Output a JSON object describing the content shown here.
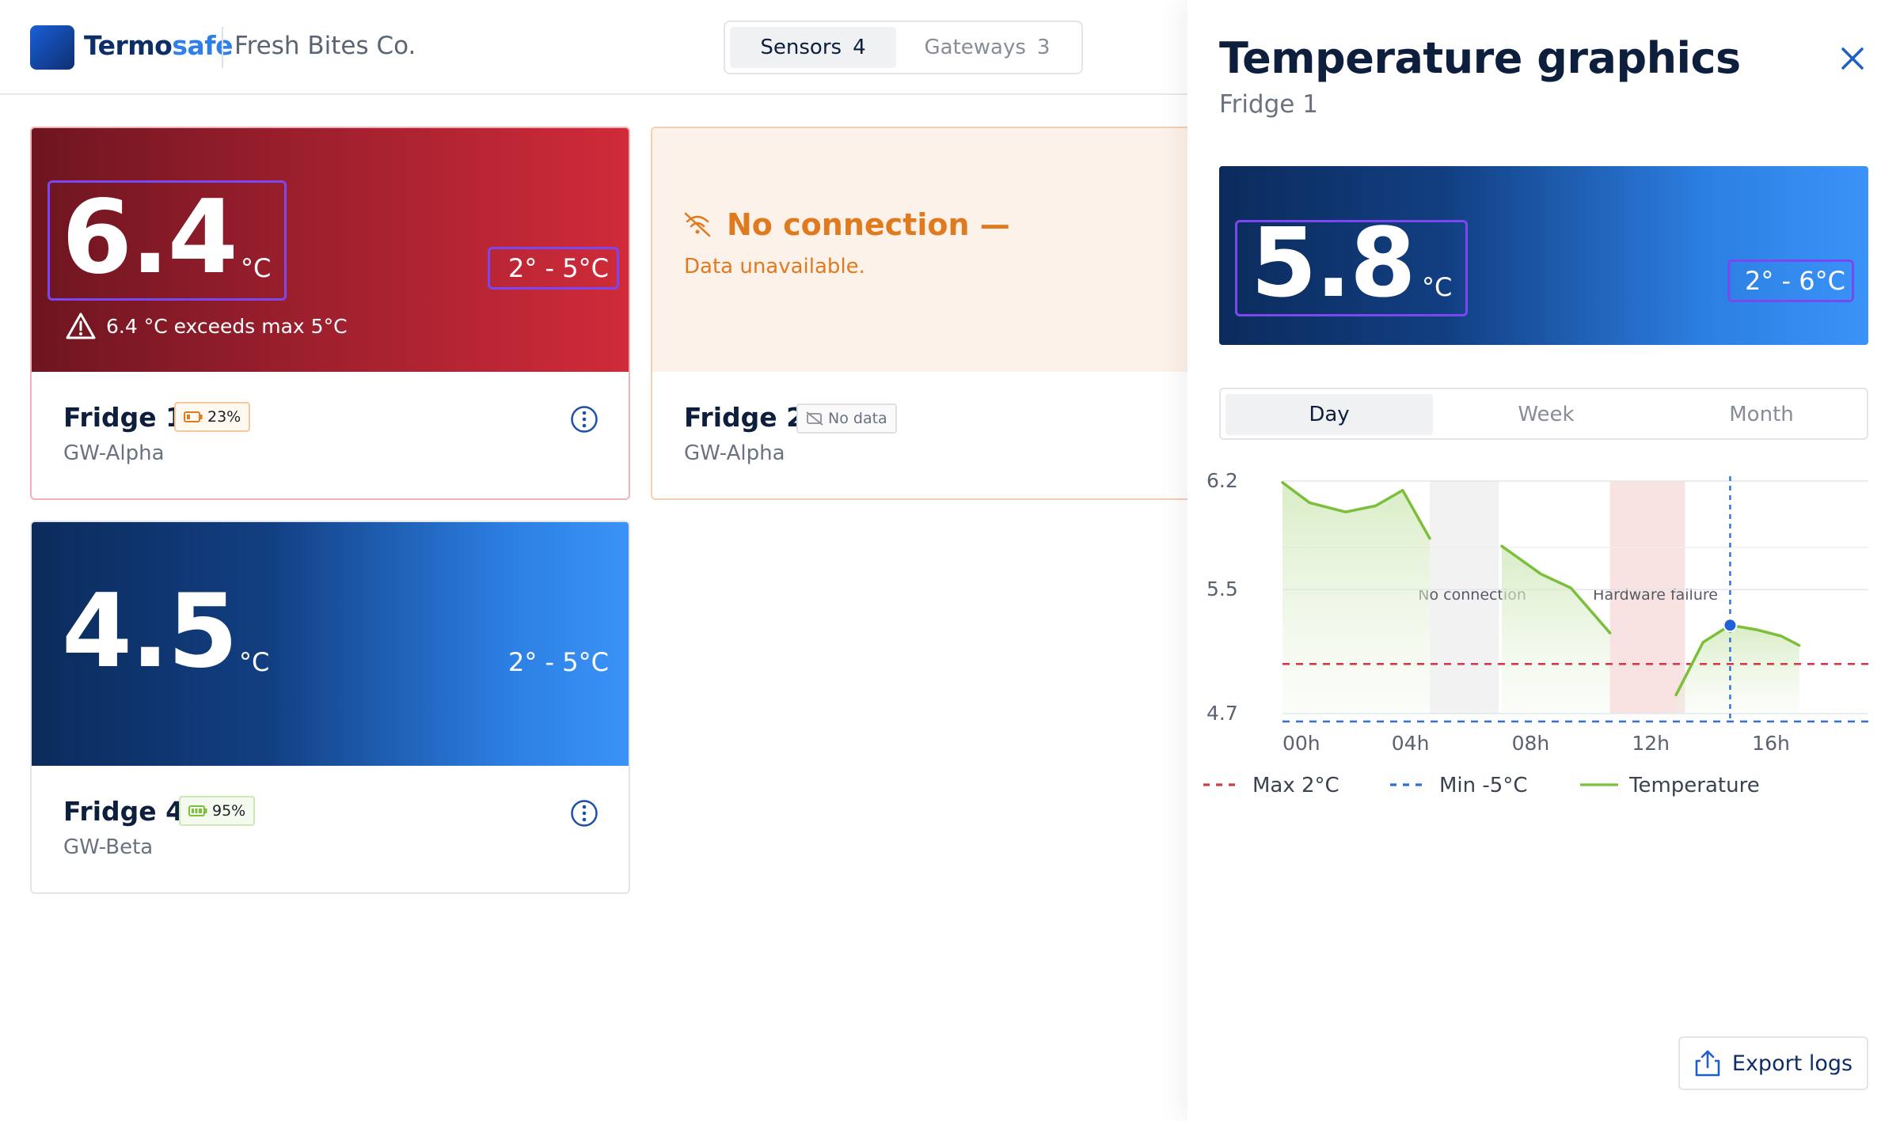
{
  "header": {
    "brand_part1": "Termo",
    "brand_part2": "safe",
    "company": "Fresh Bites Co.",
    "tabs": [
      {
        "label": "Sensors",
        "count": "4"
      },
      {
        "label": "Gateways",
        "count": "3"
      }
    ]
  },
  "cards": {
    "fridge1": {
      "value": "6.4",
      "unit": "°C",
      "range": "2° - 5°C",
      "alert": "6.4 °C exceeds max 5°C",
      "name": "Fridge 1",
      "battery": "23%",
      "gateway": "GW-Alpha"
    },
    "fridge2": {
      "status": "No connection",
      "status_dash": "—",
      "detail": "Data unavailable.",
      "name": "Fridge 2",
      "badge": "No data",
      "gateway": "GW-Alpha"
    },
    "fridge4": {
      "value": "4.5",
      "unit": "°C",
      "range": "2° - 5°C",
      "name": "Fridge 4",
      "battery": "95%",
      "gateway": "GW-Beta"
    }
  },
  "panel": {
    "title": "Temperature graphics",
    "subtitle": "Fridge 1",
    "current_value": "5.8",
    "unit": "°C",
    "range": "2° - 6°C",
    "periods": [
      "Day",
      "Week",
      "Month"
    ],
    "active_period": "Day",
    "export_label": "Export logs"
  },
  "colors": {
    "alert_red": "#c62a3a",
    "warning_orange": "#e07a1f",
    "navy": "#0d2e66",
    "accent_blue": "#2f7fe6",
    "highlight_purple": "#7b48f0",
    "line_green": "#7cbf3a"
  },
  "chart_data": {
    "type": "line",
    "title": "",
    "xlabel": "",
    "ylabel": "",
    "x_ticks": [
      "00h",
      "04h",
      "08h",
      "12h",
      "16h"
    ],
    "y_ticks": [
      "6.2",
      "5.5",
      "4.7"
    ],
    "xlim": [
      0,
      19.5
    ],
    "ylim": [
      4.7,
      6.2
    ],
    "series": [
      {
        "name": "Temperature",
        "color": "#7cbf3a",
        "segments": [
          [
            [
              0,
              6.19
            ],
            [
              0.9,
              6.06
            ],
            [
              2.1,
              6.0
            ],
            [
              3.1,
              6.04
            ],
            [
              4.0,
              6.14
            ],
            [
              4.9,
              5.83
            ]
          ],
          [
            [
              7.3,
              5.78
            ],
            [
              8.6,
              5.6
            ],
            [
              9.6,
              5.51
            ],
            [
              10.9,
              5.22
            ]
          ],
          [
            [
              13.1,
              4.82
            ],
            [
              14.0,
              5.16
            ],
            [
              14.9,
              5.27
            ],
            [
              15.8,
              5.24
            ],
            [
              16.6,
              5.2
            ],
            [
              17.2,
              5.14
            ]
          ]
        ]
      }
    ],
    "reference_lines": [
      {
        "name": "Max 2°C",
        "y": 5.02,
        "color": "#d23c4a",
        "style": "dashed"
      },
      {
        "name": "Min -5°C",
        "y": 4.62,
        "color": "#2f6fd6",
        "style": "dashed"
      }
    ],
    "bands": [
      {
        "label": "No connection",
        "x_start": 4.9,
        "x_end": 7.2,
        "color": "#f2f2f2"
      },
      {
        "label": "Hardware failure",
        "x_start": 10.9,
        "x_end": 13.4,
        "color": "#f8e2e2"
      }
    ],
    "cursor": {
      "x": 14.9,
      "y": 5.27
    },
    "legend": [
      "Max 2°C",
      "Min -5°C",
      "Temperature"
    ],
    "legend_position": "bottom",
    "grid": true
  }
}
